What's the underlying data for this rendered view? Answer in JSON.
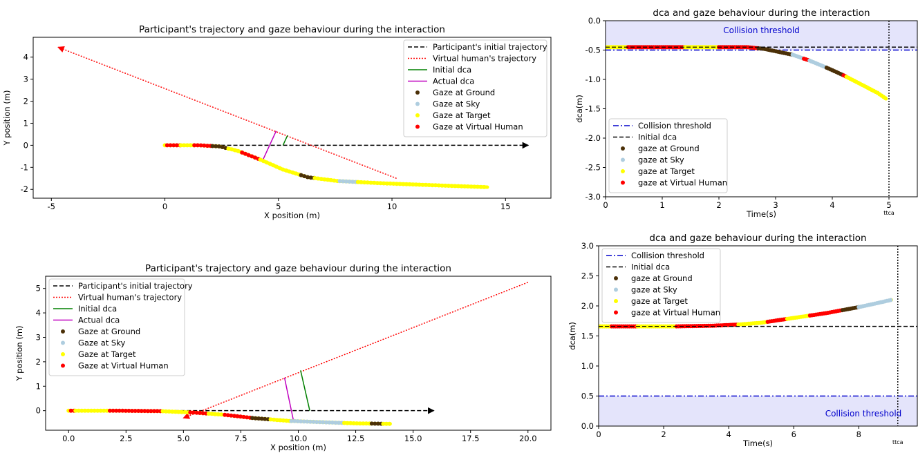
{
  "chart_data": [
    {
      "type": "scatter",
      "title": "Participant's trajectory and gaze behaviour during the interaction",
      "xlabel": "X position (m)",
      "ylabel": "Y position (m)",
      "xlim": [
        -5.8,
        17.0
      ],
      "ylim": [
        -2.4,
        4.9
      ],
      "xticks": [
        -5,
        0,
        5,
        10,
        15
      ],
      "yticks": [
        -2,
        -1,
        0,
        1,
        2,
        3,
        4
      ],
      "legend_position": "top-right",
      "series": [
        {
          "name": "Participant's initial trajectory",
          "style": "dashed",
          "color": "#000000",
          "x": [
            0,
            16
          ],
          "y": [
            0,
            0
          ],
          "arrow": true
        },
        {
          "name": "Virtual human's trajectory",
          "style": "dotted",
          "color": "#ff0000",
          "x": [
            10.2,
            -4.7
          ],
          "y": [
            -1.5,
            4.45
          ],
          "arrow": true
        },
        {
          "name": "Initial dca",
          "style": "solid",
          "color": "#008000",
          "x": [
            5.2,
            5.4
          ],
          "y": [
            0,
            0.45
          ]
        },
        {
          "name": "Actual dca",
          "style": "solid",
          "color": "#bf00bf",
          "x": [
            4.3,
            4.9
          ],
          "y": [
            -0.7,
            0.65
          ]
        },
        {
          "name": "Gaze at Ground",
          "style": "points",
          "color": "#4b3008"
        },
        {
          "name": "Gaze at Sky",
          "style": "points",
          "color": "#aecddf"
        },
        {
          "name": "Gaze at Target",
          "style": "points",
          "color": "#ffff00"
        },
        {
          "name": "Gaze at Virtual Human",
          "style": "points",
          "color": "#ff0000"
        }
      ],
      "path": {
        "points": [
          [
            0,
            0
          ],
          [
            1.5,
            0
          ],
          [
            2.4,
            -0.05
          ],
          [
            3.2,
            -0.25
          ],
          [
            4.2,
            -0.65
          ],
          [
            5.2,
            -1.1
          ],
          [
            6.3,
            -1.45
          ],
          [
            7.6,
            -1.62
          ],
          [
            9.5,
            -1.72
          ],
          [
            11.5,
            -1.8
          ],
          [
            14.2,
            -1.9
          ]
        ],
        "segments": [
          [
            0.0,
            0.1,
            "Gaze at Target"
          ],
          [
            0.1,
            0.7,
            "Gaze at Virtual Human"
          ],
          [
            0.7,
            1.3,
            "Gaze at Target"
          ],
          [
            1.3,
            2.1,
            "Gaze at Virtual Human"
          ],
          [
            2.1,
            2.8,
            "Gaze at Ground"
          ],
          [
            2.8,
            3.4,
            "Gaze at Target"
          ],
          [
            3.4,
            4.2,
            "Gaze at Virtual Human"
          ],
          [
            4.2,
            6.0,
            "Gaze at Target"
          ],
          [
            6.0,
            6.6,
            "Gaze at Ground"
          ],
          [
            6.6,
            7.7,
            "Gaze at Target"
          ],
          [
            7.7,
            8.5,
            "Gaze at Sky"
          ],
          [
            8.5,
            14.2,
            "Gaze at Target"
          ]
        ]
      }
    },
    {
      "type": "scatter",
      "title": "dca and gaze behaviour during the interaction",
      "xlabel": "Time(s)",
      "ylabel": "dca(m)",
      "xlim": [
        0,
        5.5
      ],
      "ylim": [
        -3.0,
        0.0
      ],
      "xticks": [
        0,
        1,
        2,
        3,
        4,
        5
      ],
      "yticks": [
        0.0,
        -0.5,
        -1.0,
        -1.5,
        -2.0,
        -2.5,
        -3.0
      ],
      "legend_position": "bottom-left",
      "collision_threshold": -0.5,
      "initial_dca": -0.45,
      "ttca": 5.0,
      "ttca_label": "ttca",
      "threshold_text": "Collision threshold",
      "series": [
        {
          "name": "Collision threshold",
          "style": "dashdot",
          "color": "#0000cc"
        },
        {
          "name": "Initial dca",
          "style": "dashed",
          "color": "#000000"
        },
        {
          "name": "gaze at Ground",
          "style": "points",
          "color": "#4b3008"
        },
        {
          "name": "gaze at Sky",
          "style": "points",
          "color": "#aecddf"
        },
        {
          "name": "gaze at Target",
          "style": "points",
          "color": "#ffff00"
        },
        {
          "name": "gaze at Virtual Human",
          "style": "points",
          "color": "#ff0000"
        }
      ],
      "curve": {
        "points": [
          [
            0,
            -0.45
          ],
          [
            2.5,
            -0.45
          ],
          [
            2.8,
            -0.48
          ],
          [
            3.0,
            -0.52
          ],
          [
            3.3,
            -0.58
          ],
          [
            3.6,
            -0.68
          ],
          [
            3.9,
            -0.8
          ],
          [
            4.2,
            -0.93
          ],
          [
            4.5,
            -1.08
          ],
          [
            4.8,
            -1.23
          ],
          [
            4.95,
            -1.33
          ]
        ],
        "segments": [
          [
            0.0,
            0.4,
            "gaze at Target"
          ],
          [
            0.4,
            1.4,
            "gaze at Virtual Human"
          ],
          [
            1.4,
            2.0,
            "gaze at Target"
          ],
          [
            2.0,
            2.7,
            "gaze at Virtual Human"
          ],
          [
            2.7,
            3.3,
            "gaze at Ground"
          ],
          [
            3.3,
            3.5,
            "gaze at Sky"
          ],
          [
            3.5,
            3.6,
            "gaze at Virtual Human"
          ],
          [
            3.6,
            3.9,
            "gaze at Sky"
          ],
          [
            3.9,
            4.2,
            "gaze at Ground"
          ],
          [
            4.2,
            4.25,
            "gaze at Virtual Human"
          ],
          [
            4.25,
            4.95,
            "gaze at Target"
          ]
        ]
      }
    },
    {
      "type": "scatter",
      "title": "Participant's trajectory and gaze behaviour during the interaction",
      "xlabel": "X position (m)",
      "ylabel": "Y position (m)",
      "xlim": [
        -1.0,
        21.0
      ],
      "ylim": [
        -0.8,
        5.5
      ],
      "xticks": [
        0.0,
        2.5,
        5.0,
        7.5,
        10.0,
        12.5,
        15.0,
        17.5,
        20.0
      ],
      "yticks": [
        0,
        1,
        2,
        3,
        4,
        5
      ],
      "legend_position": "top-left",
      "series": [
        {
          "name": "Participant's initial trajectory",
          "style": "dashed",
          "color": "#000000",
          "x": [
            0,
            15.9
          ],
          "y": [
            0,
            0
          ],
          "arrow": true
        },
        {
          "name": "Virtual human's trajectory",
          "style": "dotted",
          "color": "#ff0000",
          "x": [
            20.0,
            5.0
          ],
          "y": [
            5.25,
            -0.3
          ],
          "arrow": true
        },
        {
          "name": "Initial dca",
          "style": "solid",
          "color": "#008000",
          "x": [
            10.5,
            10.1
          ],
          "y": [
            0,
            1.65
          ]
        },
        {
          "name": "Actual dca",
          "style": "solid",
          "color": "#bf00bf",
          "x": [
            9.8,
            9.4
          ],
          "y": [
            -0.45,
            1.35
          ]
        },
        {
          "name": "Gaze at Ground",
          "style": "points",
          "color": "#4b3008"
        },
        {
          "name": "Gaze at Sky",
          "style": "points",
          "color": "#aecddf"
        },
        {
          "name": "Gaze at Target",
          "style": "points",
          "color": "#ffff00"
        },
        {
          "name": "Gaze at Virtual Human",
          "style": "points",
          "color": "#ff0000"
        }
      ],
      "path": {
        "points": [
          [
            0,
            0
          ],
          [
            2.0,
            0
          ],
          [
            4.0,
            -0.02
          ],
          [
            5.5,
            -0.08
          ],
          [
            6.8,
            -0.17
          ],
          [
            8.0,
            -0.3
          ],
          [
            9.6,
            -0.42
          ],
          [
            11.0,
            -0.47
          ],
          [
            12.5,
            -0.52
          ],
          [
            14.0,
            -0.54
          ]
        ],
        "segments": [
          [
            0.0,
            0.1,
            "Gaze at Target"
          ],
          [
            0.1,
            0.3,
            "Gaze at Virtual Human"
          ],
          [
            0.3,
            1.8,
            "Gaze at Target"
          ],
          [
            1.8,
            4.1,
            "Gaze at Virtual Human"
          ],
          [
            4.1,
            5.3,
            "Gaze at Target"
          ],
          [
            5.3,
            6.1,
            "Gaze at Virtual Human"
          ],
          [
            6.1,
            6.8,
            "Gaze at Target"
          ],
          [
            6.8,
            8.0,
            "Gaze at Virtual Human"
          ],
          [
            8.0,
            8.8,
            "Gaze at Ground"
          ],
          [
            8.8,
            9.7,
            "Gaze at Target"
          ],
          [
            9.7,
            12.0,
            "Gaze at Sky"
          ],
          [
            12.0,
            13.2,
            "Gaze at Target"
          ],
          [
            13.2,
            13.7,
            "Gaze at Ground"
          ],
          [
            13.7,
            14.0,
            "Gaze at Target"
          ]
        ]
      }
    },
    {
      "type": "scatter",
      "title": "dca and gaze behaviour during the interaction",
      "xlabel": "Time(s)",
      "ylabel": "dca(m)",
      "xlim": [
        0,
        9.8
      ],
      "ylim": [
        0.0,
        3.0
      ],
      "xticks": [
        0,
        2,
        4,
        6,
        8
      ],
      "yticks": [
        0.0,
        0.5,
        1.0,
        1.5,
        2.0,
        2.5,
        3.0
      ],
      "legend_position": "top-left",
      "collision_threshold": 0.5,
      "initial_dca": 1.66,
      "ttca": 9.2,
      "ttca_label": "ttca",
      "threshold_text": "Collision threshold",
      "series": [
        {
          "name": "Collision threshold",
          "style": "dashdot",
          "color": "#0000cc"
        },
        {
          "name": "Initial dca",
          "style": "dashed",
          "color": "#000000"
        },
        {
          "name": "gaze at Ground",
          "style": "points",
          "color": "#4b3008"
        },
        {
          "name": "gaze at Sky",
          "style": "points",
          "color": "#aecddf"
        },
        {
          "name": "gaze at Target",
          "style": "points",
          "color": "#ffff00"
        },
        {
          "name": "gaze at Virtual Human",
          "style": "points",
          "color": "#ff0000"
        }
      ],
      "curve": {
        "points": [
          [
            0,
            1.66
          ],
          [
            2.4,
            1.66
          ],
          [
            3.5,
            1.67
          ],
          [
            4.3,
            1.69
          ],
          [
            5.0,
            1.72
          ],
          [
            6.0,
            1.8
          ],
          [
            7.0,
            1.88
          ],
          [
            8.0,
            1.98
          ],
          [
            8.6,
            2.05
          ],
          [
            9.0,
            2.1
          ]
        ],
        "segments": [
          [
            0.0,
            0.4,
            "gaze at Target"
          ],
          [
            0.4,
            1.2,
            "gaze at Virtual Human"
          ],
          [
            1.2,
            2.4,
            "gaze at Target"
          ],
          [
            2.4,
            3.8,
            "gaze at Virtual Human"
          ],
          [
            3.8,
            4.3,
            "gaze at Virtual Human"
          ],
          [
            4.3,
            5.2,
            "gaze at Target"
          ],
          [
            5.2,
            5.8,
            "gaze at Virtual Human"
          ],
          [
            5.8,
            6.5,
            "gaze at Target"
          ],
          [
            6.5,
            7.5,
            "gaze at Virtual Human"
          ],
          [
            7.5,
            8.0,
            "gaze at Ground"
          ],
          [
            8.0,
            9.0,
            "gaze at Sky"
          ]
        ]
      }
    }
  ]
}
